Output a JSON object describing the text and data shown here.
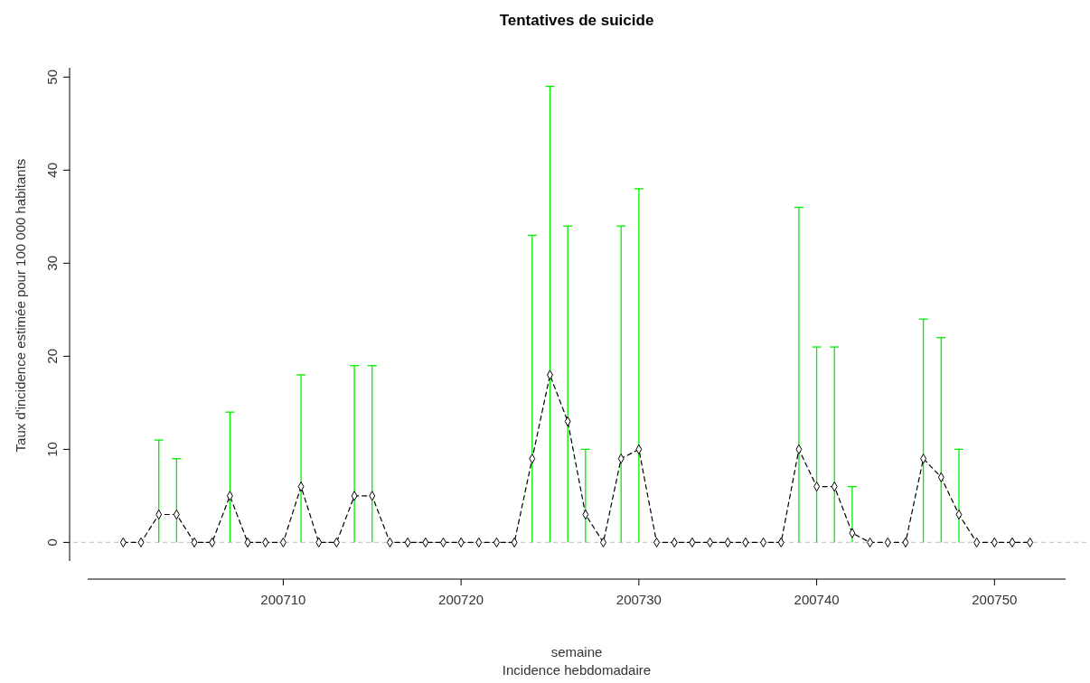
{
  "chart_data": {
    "type": "line",
    "title": "Tentatives de suicide",
    "xlabel": "semaine",
    "ylabel": "Taux d'incidence estimée pour 100 000 habitants",
    "annotations": [
      "Incidence hebdomadaire"
    ],
    "x": [
      200701,
      200702,
      200703,
      200704,
      200705,
      200706,
      200707,
      200708,
      200709,
      200710,
      200711,
      200712,
      200713,
      200714,
      200715,
      200716,
      200717,
      200718,
      200719,
      200720,
      200721,
      200722,
      200723,
      200724,
      200725,
      200726,
      200727,
      200728,
      200729,
      200730,
      200731,
      200732,
      200733,
      200734,
      200735,
      200736,
      200737,
      200738,
      200739,
      200740,
      200741,
      200742,
      200743,
      200744,
      200745,
      200746,
      200747,
      200748,
      200749,
      200750,
      200751,
      200752
    ],
    "series": [
      {
        "color": "#000000",
        "values": [
          0,
          0,
          3,
          3,
          0,
          0,
          5,
          0,
          0,
          0,
          6,
          0,
          0,
          5,
          5,
          0,
          0,
          0,
          0,
          0,
          0,
          0,
          0,
          9,
          18,
          13,
          3,
          0,
          9,
          10,
          0,
          0,
          0,
          0,
          0,
          0,
          0,
          0,
          10,
          6,
          6,
          1,
          0,
          0,
          0,
          9,
          7,
          3,
          0,
          0,
          0,
          0
        ],
        "errors": [
          null,
          null,
          [
            0,
            11
          ],
          [
            0,
            9
          ],
          null,
          null,
          [
            0,
            14
          ],
          null,
          null,
          null,
          [
            0,
            18
          ],
          null,
          null,
          [
            0,
            19
          ],
          [
            0,
            19
          ],
          null,
          null,
          null,
          null,
          null,
          null,
          null,
          null,
          [
            0,
            33
          ],
          [
            0,
            49
          ],
          [
            0,
            34
          ],
          [
            0,
            10
          ],
          null,
          [
            0,
            34
          ],
          [
            0,
            38
          ],
          null,
          null,
          null,
          null,
          null,
          null,
          null,
          null,
          [
            0,
            36
          ],
          [
            0,
            21
          ],
          [
            0,
            21
          ],
          [
            0,
            6
          ],
          null,
          null,
          null,
          [
            0,
            24
          ],
          [
            0,
            22
          ],
          [
            0,
            10
          ],
          null,
          null,
          null,
          null
        ]
      }
    ],
    "marker": "diamond",
    "line_style": "dashed",
    "xlim": [
      200699,
      200754
    ],
    "xticks": [
      200710,
      200720,
      200730,
      200740,
      200750
    ],
    "ylim": [
      -2,
      51
    ],
    "yticks": [
      0,
      10,
      20,
      30,
      40,
      50
    ],
    "ref_lines": [
      {
        "axis": "y",
        "value": 0,
        "color": "#cccccc",
        "line_style": "dashed"
      }
    ],
    "grid": false
  }
}
